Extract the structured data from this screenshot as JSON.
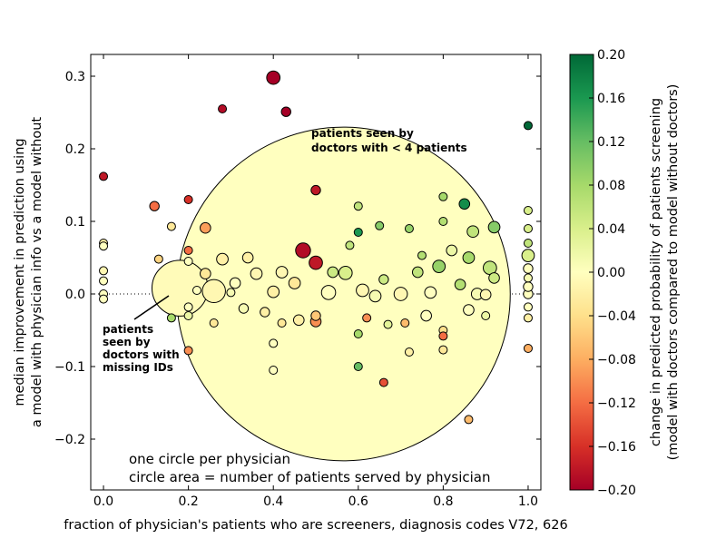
{
  "chart_data": {
    "type": "scatter",
    "xlabel": "fraction of physician's patients who are screeners, diagnosis codes V72, 626",
    "ylabel_lines": [
      "median improvement in prediction using",
      "a model with physician info vs a model without"
    ],
    "xlim": [
      -0.03,
      1.03
    ],
    "ylim": [
      -0.27,
      0.33
    ],
    "x_ticks": [
      0.0,
      0.2,
      0.4,
      0.6,
      0.8,
      1.0
    ],
    "x_tick_labels": [
      "0.0",
      "0.2",
      "0.4",
      "0.6",
      "0.8",
      "1.0"
    ],
    "y_ticks": [
      -0.2,
      -0.1,
      0.0,
      0.1,
      0.2,
      0.3
    ],
    "y_tick_labels": [
      "−0.2",
      "−0.1",
      "0.0",
      "0.1",
      "0.2",
      "0.3"
    ],
    "reference_line_y": 0.0,
    "colorbar": {
      "range": [
        -0.2,
        0.2
      ],
      "ticks": [
        0.2,
        0.16,
        0.12,
        0.08,
        0.04,
        0.0,
        -0.04,
        -0.08,
        -0.12,
        -0.16,
        -0.2
      ],
      "tick_labels": [
        "0.20",
        "0.16",
        "0.12",
        "0.08",
        "0.04",
        "0.00",
        "−0.04",
        "−0.08",
        "−0.12",
        "−0.16",
        "−0.20"
      ],
      "label_lines": [
        "change in predicted probability of patients screening",
        "(model with doctors compared to model without doctors)"
      ],
      "colors": [
        "#a50026",
        "#d73027",
        "#f46d43",
        "#fdae61",
        "#fee08b",
        "#ffffbf",
        "#d9ef8b",
        "#a6d96a",
        "#66bd63",
        "#1a9850",
        "#006837"
      ]
    },
    "annotations": {
      "large_circle_lines": [
        "patients seen by",
        "doctors with < 4 patients"
      ],
      "missing_id_lines": [
        "patients",
        "seen by",
        "doctors with",
        "missing IDs"
      ]
    },
    "notes": [
      "one circle per physician",
      "circle area = number of patients served by physician"
    ],
    "points": [
      {
        "x": 0.565,
        "y": 0.0,
        "patients": 5000,
        "c": 0.0
      },
      {
        "x": 0.18,
        "y": 0.008,
        "patients": 140,
        "c": -0.005
      },
      {
        "x": 0.26,
        "y": 0.004,
        "patients": 24,
        "c": -0.01
      },
      {
        "x": 0.4,
        "y": 0.298,
        "patients": 8,
        "c": -0.2
      },
      {
        "x": 0.43,
        "y": 0.251,
        "patients": 4,
        "c": -0.2
      },
      {
        "x": 0.28,
        "y": 0.255,
        "patients": 3,
        "c": -0.19
      },
      {
        "x": 1.0,
        "y": 0.232,
        "patients": 3,
        "c": 0.2
      },
      {
        "x": 0.0,
        "y": 0.162,
        "patients": 3,
        "c": -0.18
      },
      {
        "x": 0.5,
        "y": 0.143,
        "patients": 4,
        "c": -0.18
      },
      {
        "x": 0.47,
        "y": 0.06,
        "patients": 10,
        "c": -0.19
      },
      {
        "x": 0.5,
        "y": 0.043,
        "patients": 8,
        "c": -0.18
      },
      {
        "x": 0.12,
        "y": 0.121,
        "patients": 4,
        "c": -0.12
      },
      {
        "x": 0.2,
        "y": 0.13,
        "patients": 3,
        "c": -0.16
      },
      {
        "x": 0.85,
        "y": 0.124,
        "patients": 5,
        "c": 0.17
      },
      {
        "x": 0.8,
        "y": 0.134,
        "patients": 3,
        "c": 0.08
      },
      {
        "x": 0.6,
        "y": 0.121,
        "patients": 3,
        "c": 0.06
      },
      {
        "x": 0.92,
        "y": 0.092,
        "patients": 6,
        "c": 0.1
      },
      {
        "x": 0.87,
        "y": 0.086,
        "patients": 6,
        "c": 0.06
      },
      {
        "x": 0.24,
        "y": 0.091,
        "patients": 5,
        "c": -0.09
      },
      {
        "x": 0.16,
        "y": 0.093,
        "patients": 3,
        "c": -0.03
      },
      {
        "x": 0.65,
        "y": 0.094,
        "patients": 3,
        "c": 0.1
      },
      {
        "x": 0.72,
        "y": 0.09,
        "patients": 3,
        "c": 0.09
      },
      {
        "x": 0.8,
        "y": 0.1,
        "patients": 3,
        "c": 0.07
      },
      {
        "x": 1.0,
        "y": 0.115,
        "patients": 3,
        "c": 0.04
      },
      {
        "x": 1.0,
        "y": 0.09,
        "patients": 3,
        "c": 0.04
      },
      {
        "x": 1.0,
        "y": 0.07,
        "patients": 3,
        "c": 0.06
      },
      {
        "x": 0.13,
        "y": 0.048,
        "patients": 3,
        "c": -0.05
      },
      {
        "x": 0.57,
        "y": 0.029,
        "patients": 8,
        "c": 0.04
      },
      {
        "x": 0.54,
        "y": 0.03,
        "patients": 5,
        "c": 0.05
      },
      {
        "x": 0.91,
        "y": 0.036,
        "patients": 8,
        "c": 0.06
      },
      {
        "x": 0.86,
        "y": 0.05,
        "patients": 6,
        "c": 0.08
      },
      {
        "x": 0.82,
        "y": 0.06,
        "patients": 5,
        "c": 0.02
      },
      {
        "x": 0.79,
        "y": 0.038,
        "patients": 7,
        "c": 0.09
      },
      {
        "x": 0.75,
        "y": 0.053,
        "patients": 3,
        "c": 0.07
      },
      {
        "x": 0.58,
        "y": 0.067,
        "patients": 3,
        "c": 0.06
      },
      {
        "x": 0.6,
        "y": 0.085,
        "patients": 3,
        "c": 0.16
      },
      {
        "x": 0.92,
        "y": 0.022,
        "patients": 5,
        "c": 0.05
      },
      {
        "x": 1.0,
        "y": 0.053,
        "patients": 7,
        "c": 0.04
      },
      {
        "x": 0.74,
        "y": 0.03,
        "patients": 5,
        "c": 0.06
      },
      {
        "x": 0.84,
        "y": 0.013,
        "patients": 5,
        "c": 0.07
      },
      {
        "x": 0.66,
        "y": 0.02,
        "patients": 4,
        "c": 0.05
      },
      {
        "x": 0.24,
        "y": 0.028,
        "patients": 5,
        "c": -0.03
      },
      {
        "x": 0.28,
        "y": 0.048,
        "patients": 6,
        "c": -0.02
      },
      {
        "x": 0.34,
        "y": 0.05,
        "patients": 5,
        "c": -0.02
      },
      {
        "x": 0.36,
        "y": 0.028,
        "patients": 6,
        "c": -0.01
      },
      {
        "x": 0.31,
        "y": 0.015,
        "patients": 5,
        "c": 0.0
      },
      {
        "x": 0.45,
        "y": 0.015,
        "patients": 6,
        "c": -0.03
      },
      {
        "x": 0.42,
        "y": 0.03,
        "patients": 6,
        "c": -0.01
      },
      {
        "x": 0.53,
        "y": 0.002,
        "patients": 9,
        "c": 0.0
      },
      {
        "x": 0.61,
        "y": 0.005,
        "patients": 7,
        "c": -0.01
      },
      {
        "x": 0.64,
        "y": -0.003,
        "patients": 6,
        "c": 0.01
      },
      {
        "x": 0.7,
        "y": 0.0,
        "patients": 8,
        "c": -0.01
      },
      {
        "x": 0.77,
        "y": 0.002,
        "patients": 6,
        "c": 0.0
      },
      {
        "x": 0.88,
        "y": 0.0,
        "patients": 6,
        "c": 0.01
      },
      {
        "x": 0.9,
        "y": -0.001,
        "patients": 5,
        "c": -0.01
      },
      {
        "x": 0.4,
        "y": 0.003,
        "patients": 6,
        "c": -0.02
      },
      {
        "x": 0.46,
        "y": -0.036,
        "patients": 5,
        "c": -0.02
      },
      {
        "x": 0.38,
        "y": -0.025,
        "patients": 4,
        "c": -0.02
      },
      {
        "x": 0.33,
        "y": -0.02,
        "patients": 4,
        "c": 0.01
      },
      {
        "x": 0.26,
        "y": -0.04,
        "patients": 3,
        "c": -0.03
      },
      {
        "x": 0.5,
        "y": -0.038,
        "patients": 5,
        "c": -0.1
      },
      {
        "x": 0.5,
        "y": -0.03,
        "patients": 4,
        "c": -0.06
      },
      {
        "x": 0.62,
        "y": -0.033,
        "patients": 3,
        "c": -0.1
      },
      {
        "x": 0.67,
        "y": -0.042,
        "patients": 3,
        "c": 0.03
      },
      {
        "x": 0.71,
        "y": -0.04,
        "patients": 3,
        "c": -0.07
      },
      {
        "x": 0.76,
        "y": -0.03,
        "patients": 5,
        "c": 0.0
      },
      {
        "x": 0.8,
        "y": -0.05,
        "patients": 3,
        "c": -0.04
      },
      {
        "x": 0.86,
        "y": -0.022,
        "patients": 5,
        "c": 0.0
      },
      {
        "x": 0.9,
        "y": -0.03,
        "patients": 3,
        "c": 0.02
      },
      {
        "x": 0.6,
        "y": -0.055,
        "patients": 3,
        "c": 0.08
      },
      {
        "x": 0.72,
        "y": -0.08,
        "patients": 3,
        "c": -0.02
      },
      {
        "x": 0.8,
        "y": -0.077,
        "patients": 3,
        "c": -0.03
      },
      {
        "x": 0.4,
        "y": -0.068,
        "patients": 3,
        "c": 0.0
      },
      {
        "x": 0.42,
        "y": -0.04,
        "patients": 3,
        "c": -0.03
      },
      {
        "x": 0.8,
        "y": -0.058,
        "patients": 3,
        "c": -0.12
      },
      {
        "x": 0.6,
        "y": -0.1,
        "patients": 3,
        "c": 0.12
      },
      {
        "x": 0.4,
        "y": -0.105,
        "patients": 3,
        "c": 0.0
      },
      {
        "x": 0.66,
        "y": -0.122,
        "patients": 3,
        "c": -0.14
      },
      {
        "x": 0.86,
        "y": -0.173,
        "patients": 3,
        "c": -0.07
      },
      {
        "x": 0.2,
        "y": -0.078,
        "patients": 3,
        "c": -0.1
      },
      {
        "x": 0.2,
        "y": -0.03,
        "patients": 3,
        "c": 0.02
      },
      {
        "x": 0.16,
        "y": -0.033,
        "patients": 3,
        "c": 0.08
      },
      {
        "x": 1.0,
        "y": -0.075,
        "patients": 3,
        "c": -0.08
      },
      {
        "x": 1.0,
        "y": -0.033,
        "patients": 3,
        "c": -0.02
      },
      {
        "x": 1.0,
        "y": -0.018,
        "patients": 3,
        "c": 0.0
      },
      {
        "x": 1.0,
        "y": 0.0,
        "patients": 4,
        "c": 0.0
      },
      {
        "x": 1.0,
        "y": 0.01,
        "patients": 4,
        "c": 0.0
      },
      {
        "x": 1.0,
        "y": 0.022,
        "patients": 3,
        "c": 0.01
      },
      {
        "x": 1.0,
        "y": 0.035,
        "patients": 4,
        "c": 0.0
      },
      {
        "x": 0.0,
        "y": 0.07,
        "patients": 3,
        "c": -0.02
      },
      {
        "x": 0.0,
        "y": 0.066,
        "patients": 3,
        "c": 0.0
      },
      {
        "x": 0.0,
        "y": 0.032,
        "patients": 3,
        "c": -0.01
      },
      {
        "x": 0.0,
        "y": 0.018,
        "patients": 3,
        "c": 0.0
      },
      {
        "x": 0.0,
        "y": 0.0,
        "patients": 3,
        "c": 0.0
      },
      {
        "x": 0.0,
        "y": -0.007,
        "patients": 3,
        "c": 0.0
      },
      {
        "x": 0.2,
        "y": 0.06,
        "patients": 3,
        "c": -0.12
      },
      {
        "x": 0.2,
        "y": 0.045,
        "patients": 3,
        "c": 0.0
      },
      {
        "x": 0.2,
        "y": -0.018,
        "patients": 3,
        "c": 0.0
      },
      {
        "x": 0.22,
        "y": 0.005,
        "patients": 3,
        "c": 0.0
      },
      {
        "x": 0.3,
        "y": 0.002,
        "patients": 3,
        "c": 0.01
      }
    ]
  }
}
